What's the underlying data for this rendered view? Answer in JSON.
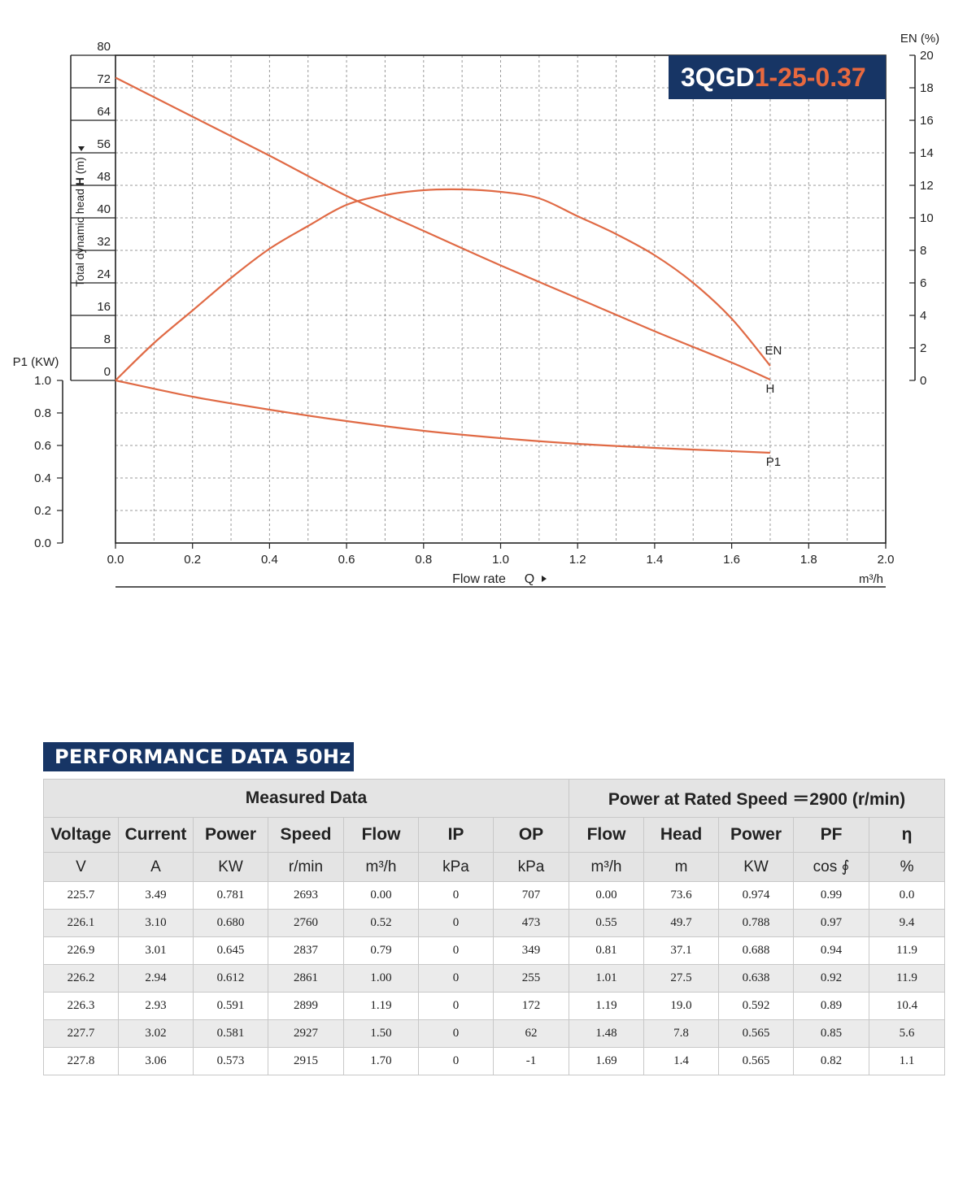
{
  "chart_data": {
    "type": "line",
    "title": "3QGD",
    "title_accent": "1-25-0.37",
    "xlabel": "Flow rate",
    "xsymbol": "Q",
    "xunit": "m³/h",
    "xlim": [
      0,
      2.0
    ],
    "xticks": [
      "0.0",
      "0.2",
      "0.4",
      "0.6",
      "0.8",
      "1.0",
      "1.2",
      "1.4",
      "1.6",
      "1.8",
      "2.0"
    ],
    "y_head": {
      "label_pre": "Total dynamic head ",
      "label_bold": "H",
      "label_post": " (m)",
      "lim": [
        0,
        80
      ],
      "ticks": [
        "0",
        "8",
        "16",
        "24",
        "32",
        "40",
        "48",
        "56",
        "64",
        "72",
        "80"
      ]
    },
    "y_en": {
      "label": "EN (%)",
      "lim": [
        0,
        20
      ],
      "ticks": [
        "0",
        "2",
        "4",
        "6",
        "8",
        "10",
        "12",
        "14",
        "16",
        "18",
        "20"
      ]
    },
    "y_p1": {
      "label": "P1 (KW)",
      "lim": [
        0,
        1.0
      ],
      "ticks": [
        "0.0",
        "0.2",
        "0.4",
        "0.6",
        "0.8",
        "1.0"
      ]
    },
    "grid": true,
    "colors": {
      "curve": "#e06a45",
      "title_bg": "#173565",
      "title_accent": "#e8693f"
    },
    "series": [
      {
        "name": "H",
        "x": [
          0,
          0.2,
          0.4,
          0.6,
          0.8,
          1.0,
          1.2,
          1.4,
          1.6,
          1.7
        ],
        "y": [
          74.5,
          64.9,
          55.3,
          45.4,
          36.8,
          28.3,
          20.2,
          12.1,
          4.4,
          0.2
        ]
      },
      {
        "name": "EN",
        "x": [
          0,
          0.1,
          0.2,
          0.3,
          0.4,
          0.5,
          0.6,
          0.7,
          0.8,
          0.9,
          1.0,
          1.1,
          1.2,
          1.3,
          1.4,
          1.5,
          1.6,
          1.7
        ],
        "y": [
          0,
          2.3,
          4.3,
          6.3,
          8.1,
          9.5,
          10.8,
          11.4,
          11.7,
          11.75,
          11.6,
          11.2,
          10.1,
          9.0,
          7.7,
          6.0,
          3.8,
          0.9
        ]
      },
      {
        "name": "P1",
        "x": [
          0,
          0.2,
          0.4,
          0.6,
          0.8,
          1.0,
          1.2,
          1.4,
          1.6,
          1.7
        ],
        "y": [
          1.0,
          0.9,
          0.82,
          0.75,
          0.69,
          0.645,
          0.61,
          0.585,
          0.565,
          0.555
        ]
      }
    ]
  },
  "perf_table": {
    "title": "PERFORMANCE DATA 50Hz",
    "group_measured": "Measured Data",
    "group_rated": "Power at Rated Speed ＝2900 (r/min)",
    "headers": [
      "Voltage",
      "Current",
      "Power",
      "Speed",
      "Flow",
      "IP",
      "OP",
      "Flow",
      "Head",
      "Power",
      "PF",
      "η"
    ],
    "units": [
      "V",
      "A",
      "KW",
      "r/min",
      "m³/h",
      "kPa",
      "kPa",
      "m³/h",
      "m",
      "KW",
      "cos ∮",
      "%"
    ],
    "rows": [
      [
        "225.7",
        "3.49",
        "0.781",
        "2693",
        "0.00",
        "0",
        "707",
        "0.00",
        "73.6",
        "0.974",
        "0.99",
        "0.0"
      ],
      [
        "226.1",
        "3.10",
        "0.680",
        "2760",
        "0.52",
        "0",
        "473",
        "0.55",
        "49.7",
        "0.788",
        "0.97",
        "9.4"
      ],
      [
        "226.9",
        "3.01",
        "0.645",
        "2837",
        "0.79",
        "0",
        "349",
        "0.81",
        "37.1",
        "0.688",
        "0.94",
        "11.9"
      ],
      [
        "226.2",
        "2.94",
        "0.612",
        "2861",
        "1.00",
        "0",
        "255",
        "1.01",
        "27.5",
        "0.638",
        "0.92",
        "11.9"
      ],
      [
        "226.3",
        "2.93",
        "0.591",
        "2899",
        "1.19",
        "0",
        "172",
        "1.19",
        "19.0",
        "0.592",
        "0.89",
        "10.4"
      ],
      [
        "227.7",
        "3.02",
        "0.581",
        "2927",
        "1.50",
        "0",
        "62",
        "1.48",
        "7.8",
        "0.565",
        "0.85",
        "5.6"
      ],
      [
        "227.8",
        "3.06",
        "0.573",
        "2915",
        "1.70",
        "0",
        "-1",
        "1.69",
        "1.4",
        "0.565",
        "0.82",
        "1.1"
      ]
    ]
  }
}
